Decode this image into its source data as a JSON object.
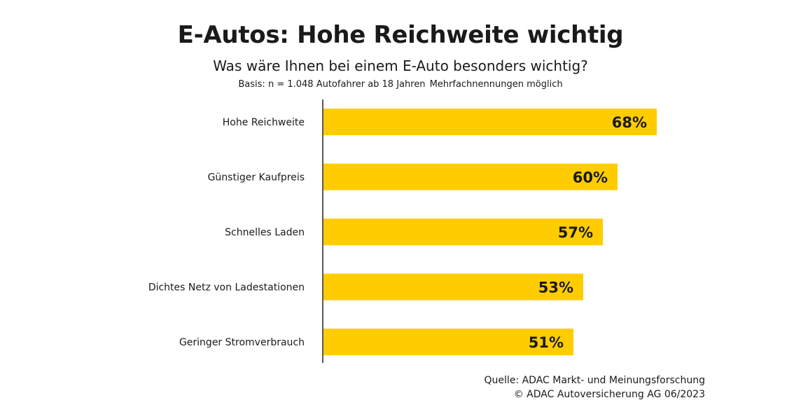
{
  "header": {
    "title": "E-Autos: Hohe Reichweite wichtig",
    "subtitle": "Was wäre Ihnen bei einem E-Auto besonders wichtig?",
    "basis": "Basis: n = 1.048 Autofahrer ab 18 Jahren",
    "note": "Mehrfachnennungen möglich"
  },
  "chart_data": {
    "type": "bar",
    "orientation": "horizontal",
    "categories": [
      "Hohe Reichweite",
      "Günstiger Kaufpreis",
      "Schnelles Laden",
      "Dichtes Netz von Ladestationen",
      "Geringer Stromverbrauch"
    ],
    "values": [
      68,
      60,
      57,
      53,
      51
    ],
    "value_labels": [
      "68%",
      "60%",
      "57%",
      "53%",
      "51%"
    ],
    "unit": "%",
    "bar_color": "#FFCC00",
    "grid": false,
    "legend": "none"
  },
  "footer": {
    "source_line": "Quelle: ADAC Markt- und Meinungsforschung",
    "copyright_line": "© ADAC Autoversicherung AG 06/2023"
  }
}
